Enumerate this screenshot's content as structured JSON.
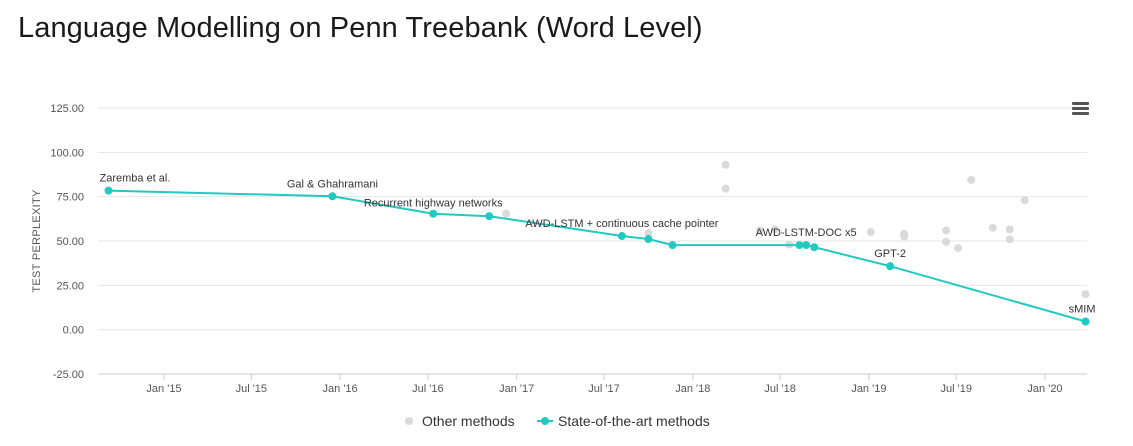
{
  "title": "Language Modelling on Penn Treebank (Word Level)",
  "icons": {
    "menu": "hamburger-menu-icon"
  },
  "chart_data": {
    "type": "scatter",
    "title": "Language Modelling on Penn Treebank (Word Level)",
    "ylabel": "TEST PERPLEXITY",
    "xlabel": "",
    "ylim": [
      -25,
      125
    ],
    "yticks": [
      "125.00",
      "100.00",
      "75.00",
      "50.00",
      "25.00",
      "0.00",
      "-25.00"
    ],
    "xticks": [
      "Jan '15",
      "Jul '15",
      "Jan '16",
      "Jul '16",
      "Jan '17",
      "Jul '17",
      "Jan '18",
      "Jul '18",
      "Jan '19",
      "Jul '19",
      "Jan '20"
    ],
    "grid": true,
    "legend_position": "bottom",
    "colors": {
      "sota": "#21c9c1",
      "other": "#dadada"
    },
    "legend": [
      "Other methods",
      "State-of-the-art methods"
    ],
    "series": [
      {
        "name": "Other methods",
        "points": [
          {
            "x": "2016-12-10",
            "y": 65.4
          },
          {
            "x": "2017-10-01",
            "y": 54.5
          },
          {
            "x": "2018-03-10",
            "y": 93.0
          },
          {
            "x": "2018-03-10",
            "y": 79.5
          },
          {
            "x": "2018-05-20",
            "y": 56.0
          },
          {
            "x": "2018-06-20",
            "y": 56.5
          },
          {
            "x": "2018-07-20",
            "y": 48.0
          },
          {
            "x": "2019-01-05",
            "y": 55.0
          },
          {
            "x": "2019-03-15",
            "y": 54.0
          },
          {
            "x": "2019-03-15",
            "y": 52.5
          },
          {
            "x": "2019-06-10",
            "y": 56.0
          },
          {
            "x": "2019-06-10",
            "y": 49.5
          },
          {
            "x": "2019-07-05",
            "y": 46.0
          },
          {
            "x": "2019-08-01",
            "y": 84.5
          },
          {
            "x": "2019-09-15",
            "y": 57.5
          },
          {
            "x": "2019-10-20",
            "y": 56.5
          },
          {
            "x": "2019-10-20",
            "y": 51.0
          },
          {
            "x": "2019-11-20",
            "y": 73.0
          },
          {
            "x": "2020-03-25",
            "y": 20.0
          }
        ]
      },
      {
        "name": "State-of-the-art methods",
        "points": [
          {
            "x": "2014-09-08",
            "y": 78.4,
            "label": "Zaremba et al."
          },
          {
            "x": "2015-12-16",
            "y": 75.2,
            "label": "Gal & Ghahramani"
          },
          {
            "x": "2016-07-12",
            "y": 65.4,
            "label": "Recurrent highway networks"
          },
          {
            "x": "2016-11-05",
            "y": 64.0
          },
          {
            "x": "2017-08-07",
            "y": 52.8,
            "label": "AWD-LSTM + continuous cache pointer"
          },
          {
            "x": "2017-10-01",
            "y": 51.1
          },
          {
            "x": "2017-11-20",
            "y": 47.7
          },
          {
            "x": "2018-08-10",
            "y": 47.7
          },
          {
            "x": "2018-08-24",
            "y": 47.7,
            "label": "AWD-LSTM-DOC x5"
          },
          {
            "x": "2018-09-10",
            "y": 46.5
          },
          {
            "x": "2019-02-14",
            "y": 35.8,
            "label": "GPT-2"
          },
          {
            "x": "2020-03-25",
            "y": 4.6,
            "label": "sMIM"
          }
        ]
      }
    ]
  }
}
